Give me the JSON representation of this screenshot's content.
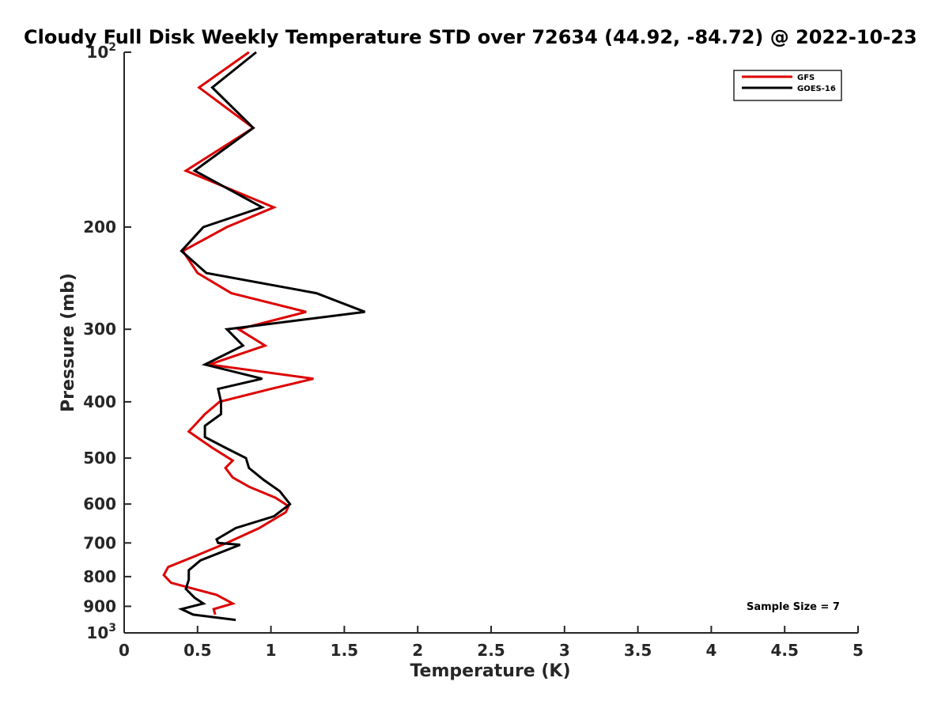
{
  "chart_data": {
    "type": "line",
    "title": "Cloudy Full Disk Weekly Temperature STD over 72634 (44.92, -84.72) @ 2022-10-23",
    "xlabel": "Temperature (K)",
    "ylabel": "Pressure (mb)",
    "xlim": [
      0,
      5
    ],
    "ylim": [
      100,
      1000
    ],
    "yscale": "log",
    "y_reversed": true,
    "xticks": [
      "0",
      "0.5",
      "1",
      "1.5",
      "2",
      "2.5",
      "3",
      "3.5",
      "4",
      "4.5",
      "5"
    ],
    "yticks": [
      {
        "value": 100,
        "label": "10",
        "exp": "2"
      },
      {
        "value": 200,
        "label": "200"
      },
      {
        "value": 300,
        "label": "300"
      },
      {
        "value": 400,
        "label": "400"
      },
      {
        "value": 500,
        "label": "500"
      },
      {
        "value": 600,
        "label": "600"
      },
      {
        "value": 700,
        "label": "700"
      },
      {
        "value": 800,
        "label": "800"
      },
      {
        "value": 900,
        "label": "900"
      },
      {
        "value": 1000,
        "label": "10",
        "exp": "3"
      }
    ],
    "legend": {
      "placement": "top-right"
    },
    "annotation": "Sample Size = 7",
    "series": [
      {
        "name": "GFS",
        "color": "#dd0000",
        "points": [
          [
            0.85,
            100
          ],
          [
            0.51,
            115
          ],
          [
            0.88,
            135
          ],
          [
            0.42,
            160
          ],
          [
            1.02,
            185
          ],
          [
            0.7,
            200
          ],
          [
            0.4,
            220
          ],
          [
            0.5,
            240
          ],
          [
            0.73,
            260
          ],
          [
            1.24,
            280
          ],
          [
            0.78,
            300
          ],
          [
            0.96,
            320
          ],
          [
            0.58,
            345
          ],
          [
            1.29,
            365
          ],
          [
            1.0,
            380
          ],
          [
            0.65,
            400
          ],
          [
            0.55,
            420
          ],
          [
            0.44,
            450
          ],
          [
            0.6,
            480
          ],
          [
            0.74,
            505
          ],
          [
            0.69,
            520
          ],
          [
            0.74,
            540
          ],
          [
            0.85,
            560
          ],
          [
            1.03,
            585
          ],
          [
            1.12,
            605
          ],
          [
            1.1,
            620
          ],
          [
            0.92,
            660
          ],
          [
            0.7,
            700
          ],
          [
            0.47,
            740
          ],
          [
            0.3,
            770
          ],
          [
            0.27,
            795
          ],
          [
            0.32,
            820
          ],
          [
            0.63,
            860
          ],
          [
            0.74,
            890
          ],
          [
            0.61,
            910
          ],
          [
            0.62,
            930
          ]
        ]
      },
      {
        "name": "GOES-16",
        "color": "#000000",
        "points": [
          [
            0.9,
            100
          ],
          [
            0.6,
            115
          ],
          [
            0.88,
            135
          ],
          [
            0.48,
            160
          ],
          [
            0.94,
            185
          ],
          [
            0.54,
            200
          ],
          [
            0.39,
            220
          ],
          [
            0.56,
            240
          ],
          [
            1.31,
            260
          ],
          [
            1.64,
            280
          ],
          [
            0.7,
            300
          ],
          [
            0.81,
            320
          ],
          [
            0.55,
            345
          ],
          [
            0.94,
            365
          ],
          [
            0.64,
            380
          ],
          [
            0.66,
            400
          ],
          [
            0.66,
            420
          ],
          [
            0.55,
            440
          ],
          [
            0.55,
            460
          ],
          [
            0.69,
            480
          ],
          [
            0.83,
            500
          ],
          [
            0.85,
            520
          ],
          [
            0.95,
            545
          ],
          [
            1.06,
            570
          ],
          [
            1.13,
            600
          ],
          [
            1.02,
            630
          ],
          [
            0.76,
            660
          ],
          [
            0.63,
            690
          ],
          [
            0.64,
            700
          ],
          [
            0.79,
            705
          ],
          [
            0.52,
            750
          ],
          [
            0.44,
            780
          ],
          [
            0.44,
            810
          ],
          [
            0.42,
            840
          ],
          [
            0.48,
            870
          ],
          [
            0.54,
            890
          ],
          [
            0.39,
            910
          ],
          [
            0.47,
            930
          ],
          [
            0.76,
            950
          ]
        ]
      }
    ]
  }
}
